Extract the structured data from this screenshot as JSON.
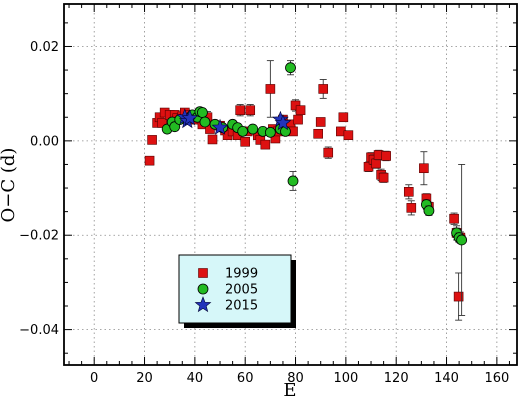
{
  "chart_data": {
    "type": "scatter",
    "xlabel": "E",
    "ylabel": "O−C (d)",
    "xlim": [
      -12,
      168
    ],
    "ylim": [
      -0.0475,
      0.029
    ],
    "x_ticks": [
      0,
      20,
      40,
      60,
      80,
      100,
      120,
      140,
      160
    ],
    "x_tick_labels": [
      "0",
      "20",
      "40",
      "60",
      "80",
      "100",
      "120",
      "140",
      "160"
    ],
    "y_ticks": [
      -0.04,
      -0.02,
      0.0,
      0.02
    ],
    "y_tick_labels": [
      "−0.04",
      "−0.02",
      "0.00",
      "0.02"
    ],
    "grid": true,
    "legend_position": "lower-left",
    "series": [
      {
        "name": "1999",
        "marker": "square",
        "color": "#dd1111",
        "points": [
          {
            "x": 22,
            "y": -0.0042,
            "err": 0.0008
          },
          {
            "x": 23,
            "y": 0.0002,
            "err": 0.0008
          },
          {
            "x": 25,
            "y": 0.0038,
            "err": 0.0008
          },
          {
            "x": 26,
            "y": 0.005,
            "err": 0.0008
          },
          {
            "x": 27,
            "y": 0.0038,
            "err": 0.0008
          },
          {
            "x": 28,
            "y": 0.006,
            "err": 0.0008
          },
          {
            "x": 30,
            "y": 0.0055,
            "err": 0.0008
          },
          {
            "x": 32,
            "y": 0.0055,
            "err": 0.0008
          },
          {
            "x": 33,
            "y": 0.0048,
            "err": 0.0008
          },
          {
            "x": 35,
            "y": 0.0052,
            "err": 0.0008
          },
          {
            "x": 36,
            "y": 0.006,
            "err": 0.0008
          },
          {
            "x": 38,
            "y": 0.0055,
            "err": 0.0008
          },
          {
            "x": 40,
            "y": 0.0045,
            "err": 0.0008
          },
          {
            "x": 42,
            "y": 0.0058,
            "err": 0.0008
          },
          {
            "x": 43,
            "y": 0.0035,
            "err": 0.0008
          },
          {
            "x": 45,
            "y": 0.005,
            "err": 0.0012
          },
          {
            "x": 46,
            "y": 0.0025,
            "err": 0.0008
          },
          {
            "x": 47,
            "y": 0.0003,
            "err": 0.0008
          },
          {
            "x": 50,
            "y": 0.0032,
            "err": 0.0008
          },
          {
            "x": 52,
            "y": 0.0022,
            "err": 0.0008
          },
          {
            "x": 53,
            "y": 0.0012,
            "err": 0.0008
          },
          {
            "x": 55,
            "y": 0.002,
            "err": 0.0008
          },
          {
            "x": 57,
            "y": 0.0012,
            "err": 0.0008
          },
          {
            "x": 58,
            "y": 0.0065,
            "err": 0.0012
          },
          {
            "x": 60,
            "y": -0.0002,
            "err": 0.0008
          },
          {
            "x": 61,
            "y": 0.002,
            "err": 0.0008
          },
          {
            "x": 62,
            "y": 0.0065,
            "err": 0.0012
          },
          {
            "x": 65,
            "y": 0.0012,
            "err": 0.0008
          },
          {
            "x": 66,
            "y": 0.0002,
            "err": 0.0008
          },
          {
            "x": 68,
            "y": -0.0008,
            "err": 0.0008
          },
          {
            "x": 70,
            "y": 0.011,
            "err": 0.006
          },
          {
            "x": 71,
            "y": 0.0025,
            "err": 0.0008
          },
          {
            "x": 72,
            "y": 0.0005,
            "err": 0.0008
          },
          {
            "x": 73,
            "y": 0.002,
            "err": 0.0008
          },
          {
            "x": 75,
            "y": 0.0045,
            "err": 0.0008
          },
          {
            "x": 78,
            "y": 0.0035,
            "err": 0.0008
          },
          {
            "x": 79,
            "y": 0.002,
            "err": 0.0008
          },
          {
            "x": 80,
            "y": 0.0075,
            "err": 0.0012
          },
          {
            "x": 81,
            "y": 0.0045,
            "err": 0.0008
          },
          {
            "x": 82,
            "y": 0.0065,
            "err": 0.0008
          },
          {
            "x": 89,
            "y": 0.0015,
            "err": 0.0008
          },
          {
            "x": 90,
            "y": 0.004,
            "err": 0.0008
          },
          {
            "x": 91,
            "y": 0.011,
            "err": 0.002
          },
          {
            "x": 93,
            "y": -0.0025,
            "err": 0.0012
          },
          {
            "x": 98,
            "y": 0.002,
            "err": 0.0008
          },
          {
            "x": 99,
            "y": 0.005,
            "err": 0.0008
          },
          {
            "x": 101,
            "y": 0.0012,
            "err": 0.0008
          },
          {
            "x": 109,
            "y": -0.0055,
            "err": 0.001
          },
          {
            "x": 110,
            "y": -0.0035,
            "err": 0.001
          },
          {
            "x": 111,
            "y": -0.004,
            "err": 0.001
          },
          {
            "x": 112,
            "y": -0.0048,
            "err": 0.001
          },
          {
            "x": 113,
            "y": -0.003,
            "err": 0.001
          },
          {
            "x": 114,
            "y": -0.0072,
            "err": 0.0012
          },
          {
            "x": 115,
            "y": -0.0078,
            "err": 0.001
          },
          {
            "x": 116,
            "y": -0.0032,
            "err": 0.001
          },
          {
            "x": 125,
            "y": -0.0108,
            "err": 0.0015
          },
          {
            "x": 126,
            "y": -0.0142,
            "err": 0.0015
          },
          {
            "x": 131,
            "y": -0.0058,
            "err": 0.0035
          },
          {
            "x": 132,
            "y": -0.0122,
            "err": 0.001
          },
          {
            "x": 133,
            "y": -0.014,
            "err": 0.001
          },
          {
            "x": 143,
            "y": -0.0165,
            "err": 0.0012
          },
          {
            "x": 144,
            "y": -0.0195,
            "err": 0.0015
          },
          {
            "x": 144.8,
            "y": -0.033,
            "err": 0.005
          },
          {
            "x": 145.5,
            "y": -0.0205,
            "err": 0.0012
          }
        ]
      },
      {
        "name": "2005",
        "marker": "circle",
        "color": "#22bb22",
        "points": [
          {
            "x": 29,
            "y": 0.0025,
            "err": 0.0008
          },
          {
            "x": 31,
            "y": 0.004,
            "err": 0.0008
          },
          {
            "x": 32,
            "y": 0.003,
            "err": 0.0008
          },
          {
            "x": 34,
            "y": 0.0045,
            "err": 0.0008
          },
          {
            "x": 37,
            "y": 0.0045,
            "err": 0.0008
          },
          {
            "x": 39,
            "y": 0.0055,
            "err": 0.0008
          },
          {
            "x": 41,
            "y": 0.005,
            "err": 0.0008
          },
          {
            "x": 42,
            "y": 0.0062,
            "err": 0.0008
          },
          {
            "x": 43,
            "y": 0.006,
            "err": 0.0008
          },
          {
            "x": 44,
            "y": 0.004,
            "err": 0.0008
          },
          {
            "x": 48,
            "y": 0.0035,
            "err": 0.0008
          },
          {
            "x": 51,
            "y": 0.0028,
            "err": 0.0008
          },
          {
            "x": 55,
            "y": 0.0035,
            "err": 0.0008
          },
          {
            "x": 57,
            "y": 0.0028,
            "err": 0.0008
          },
          {
            "x": 59,
            "y": 0.002,
            "err": 0.0008
          },
          {
            "x": 63,
            "y": 0.0025,
            "err": 0.0008
          },
          {
            "x": 67,
            "y": 0.002,
            "err": 0.0008
          },
          {
            "x": 70,
            "y": 0.0018,
            "err": 0.0008
          },
          {
            "x": 74,
            "y": 0.0025,
            "err": 0.0008
          },
          {
            "x": 76,
            "y": 0.002,
            "err": 0.0008
          },
          {
            "x": 78,
            "y": 0.0155,
            "err": 0.0015
          },
          {
            "x": 79,
            "y": -0.0085,
            "err": 0.002
          },
          {
            "x": 132,
            "y": -0.0135,
            "err": 0.001
          },
          {
            "x": 133,
            "y": -0.0148,
            "err": 0.001
          },
          {
            "x": 144,
            "y": -0.0195,
            "err": 0.001
          },
          {
            "x": 145,
            "y": -0.0205,
            "err": 0.001
          },
          {
            "x": 146,
            "y": -0.021,
            "err": 0.016
          }
        ]
      },
      {
        "name": "2015",
        "marker": "star",
        "color": "#2233bb",
        "points": [
          {
            "x": 36,
            "y": 0.005,
            "err": 0
          },
          {
            "x": 37,
            "y": 0.0042,
            "err": 0
          },
          {
            "x": 38,
            "y": 0.0048,
            "err": 0
          },
          {
            "x": 50,
            "y": 0.0028,
            "err": 0
          },
          {
            "x": 74,
            "y": 0.0045,
            "err": 0
          },
          {
            "x": 75,
            "y": 0.0038,
            "err": 0
          }
        ]
      }
    ]
  }
}
